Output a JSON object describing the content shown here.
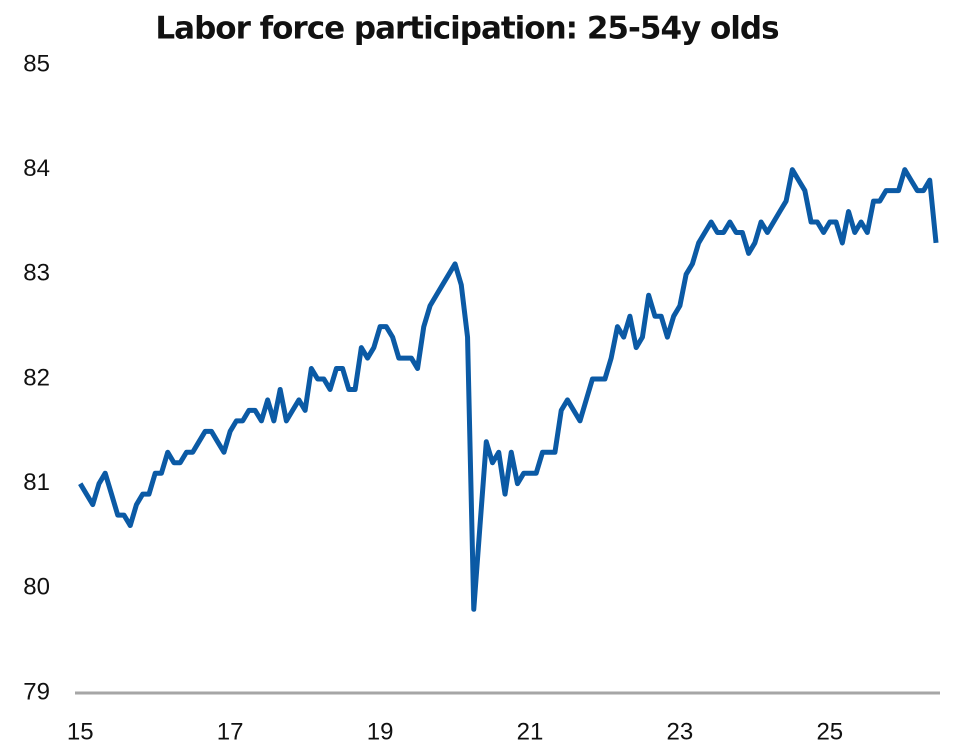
{
  "chart_data": {
    "type": "line",
    "title": "Labor force participation: 25-54y olds",
    "x": [
      15,
      15.083,
      15.167,
      15.25,
      15.333,
      15.417,
      15.5,
      15.583,
      15.667,
      15.75,
      15.833,
      15.917,
      16,
      16.083,
      16.167,
      16.25,
      16.333,
      16.417,
      16.5,
      16.583,
      16.667,
      16.75,
      16.833,
      16.917,
      17,
      17.083,
      17.167,
      17.25,
      17.333,
      17.417,
      17.5,
      17.583,
      17.667,
      17.75,
      17.833,
      17.917,
      18,
      18.083,
      18.167,
      18.25,
      18.333,
      18.417,
      18.5,
      18.583,
      18.667,
      18.75,
      18.833,
      18.917,
      19,
      19.083,
      19.167,
      19.25,
      19.333,
      19.417,
      19.5,
      19.583,
      19.667,
      19.75,
      19.833,
      19.917,
      20,
      20.083,
      20.167,
      20.25,
      20.333,
      20.417,
      20.5,
      20.583,
      20.667,
      20.75,
      20.833,
      20.917,
      21,
      21.083,
      21.167,
      21.25,
      21.333,
      21.417,
      21.5,
      21.583,
      21.667,
      21.75,
      21.833,
      21.917,
      22,
      22.083,
      22.167,
      22.25,
      22.333,
      22.417,
      22.5,
      22.583,
      22.667,
      22.75,
      22.833,
      22.917,
      23,
      23.083,
      23.167,
      23.25,
      23.333,
      23.417,
      23.5,
      23.583,
      23.667,
      23.75,
      23.833,
      23.917,
      24,
      24.083,
      24.167,
      24.25,
      24.333,
      24.417,
      24.5,
      24.583,
      24.667,
      24.75,
      24.833,
      24.917,
      25,
      25.083,
      25.167,
      25.25,
      25.333,
      25.417,
      25.5,
      25.583,
      25.667,
      25.75,
      25.833,
      25.917,
      26,
      26.083,
      26.167,
      26.25,
      26.333,
      26.417
    ],
    "series": [
      {
        "color": "#0b5aa5",
        "values": [
          81.0,
          80.9,
          80.8,
          81.0,
          81.1,
          80.9,
          80.7,
          80.7,
          80.6,
          80.8,
          80.9,
          80.9,
          81.1,
          81.1,
          81.3,
          81.2,
          81.2,
          81.3,
          81.3,
          81.4,
          81.5,
          81.5,
          81.4,
          81.3,
          81.5,
          81.6,
          81.6,
          81.7,
          81.7,
          81.6,
          81.8,
          81.6,
          81.9,
          81.6,
          81.7,
          81.8,
          81.7,
          82.1,
          82.0,
          82.0,
          81.9,
          82.1,
          82.1,
          81.9,
          81.9,
          82.3,
          82.2,
          82.3,
          82.5,
          82.5,
          82.4,
          82.2,
          82.2,
          82.2,
          82.1,
          82.5,
          82.7,
          82.8,
          82.9,
          83.0,
          83.1,
          82.9,
          82.4,
          79.8,
          80.6,
          81.4,
          81.2,
          81.3,
          80.9,
          81.3,
          81.0,
          81.1,
          81.1,
          81.1,
          81.3,
          81.3,
          81.3,
          81.7,
          81.8,
          81.7,
          81.6,
          81.8,
          82.0,
          82.0,
          82.0,
          82.2,
          82.5,
          82.4,
          82.6,
          82.3,
          82.4,
          82.8,
          82.6,
          82.6,
          82.4,
          82.6,
          82.7,
          83.0,
          83.1,
          83.3,
          83.4,
          83.5,
          83.4,
          83.4,
          83.5,
          83.4,
          83.4,
          83.2,
          83.3,
          83.5,
          83.4,
          83.5,
          83.6,
          83.7,
          84.0,
          83.9,
          83.8,
          83.5,
          83.5,
          83.4,
          83.5,
          83.5,
          83.3,
          83.6,
          83.4,
          83.5,
          83.4,
          83.7,
          83.7,
          83.8,
          83.8,
          83.8,
          84.0,
          83.9,
          83.8,
          83.8,
          83.9,
          83.3
        ]
      }
    ],
    "xlim": [
      14.93,
      26.47
    ],
    "xticks": [
      15,
      17,
      19,
      21,
      23,
      25
    ],
    "ylim": [
      79,
      85
    ],
    "yticks": [
      79,
      80,
      81,
      82,
      83,
      84,
      85
    ]
  }
}
